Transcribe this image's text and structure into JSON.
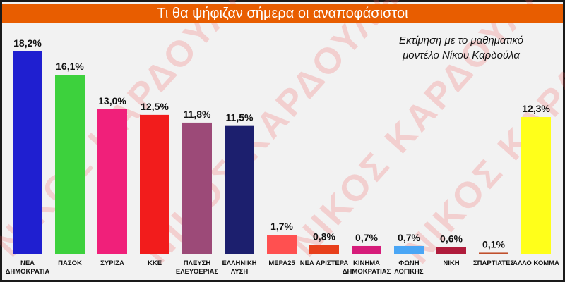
{
  "chart_data": {
    "type": "bar",
    "title": "Τι θα ψήφιζαν σήμερα οι αναποφάσιστοι",
    "subtitle": [
      "Εκτίμηση με το μαθηματικό",
      "μοντέλο Νίκου Καρδούλα"
    ],
    "watermark": "ΝΙΚΟΣ ΚΑΡΔΟΥΛΑΣ",
    "unit": "%",
    "ylim": [
      0,
      18.2
    ],
    "grid": false,
    "categories": [
      [
        "ΝΕΑ",
        "ΔΗΜΟΚΡΑΤΙΑ"
      ],
      [
        "ΠΑΣΟΚ"
      ],
      [
        "ΣΥΡΙΖΑ"
      ],
      [
        "ΚΚΕ"
      ],
      [
        "ΠΛΕΥΣΗ",
        "ΕΛΕΥΘΕΡΙΑΣ"
      ],
      [
        "ΕΛΛΗΝΙΚΗ",
        "ΛΥΣΗ"
      ],
      [
        "ΜΕΡΑ25"
      ],
      [
        "ΝΕΑ ΑΡΙΣΤΕΡΑ"
      ],
      [
        "ΚΙΝΗΜΑ",
        "ΔΗΜΟΚΡΑΤΙΑΣ"
      ],
      [
        "ΦΩΝΗ",
        "ΛΟΓΙΚΗΣ"
      ],
      [
        "ΝΙΚΗ"
      ],
      [
        "ΣΠΑΡΤΙΑΤΕΣ"
      ],
      [
        "ΑΛΛΟ ΚΟΜΜΑ"
      ]
    ],
    "values": [
      18.2,
      16.1,
      13.0,
      12.5,
      11.8,
      11.5,
      1.7,
      0.8,
      0.7,
      0.7,
      0.6,
      0.1,
      12.3
    ],
    "labels": [
      "18,2%",
      "16,1%",
      "13,0%",
      "12,5%",
      "11,8%",
      "11,5%",
      "1,7%",
      "0,8%",
      "0,7%",
      "0,7%",
      "0,6%",
      "0,1%",
      "12,3%"
    ],
    "colors": [
      "#1f1fd0",
      "#3dd13d",
      "#f0207a",
      "#f21c1c",
      "#9c4a78",
      "#1c1f6e",
      "#ff5050",
      "#e8401c",
      "#d61c7a",
      "#4aa6f5",
      "#b01c3c",
      "#c0502c",
      "#ffff1a"
    ]
  }
}
